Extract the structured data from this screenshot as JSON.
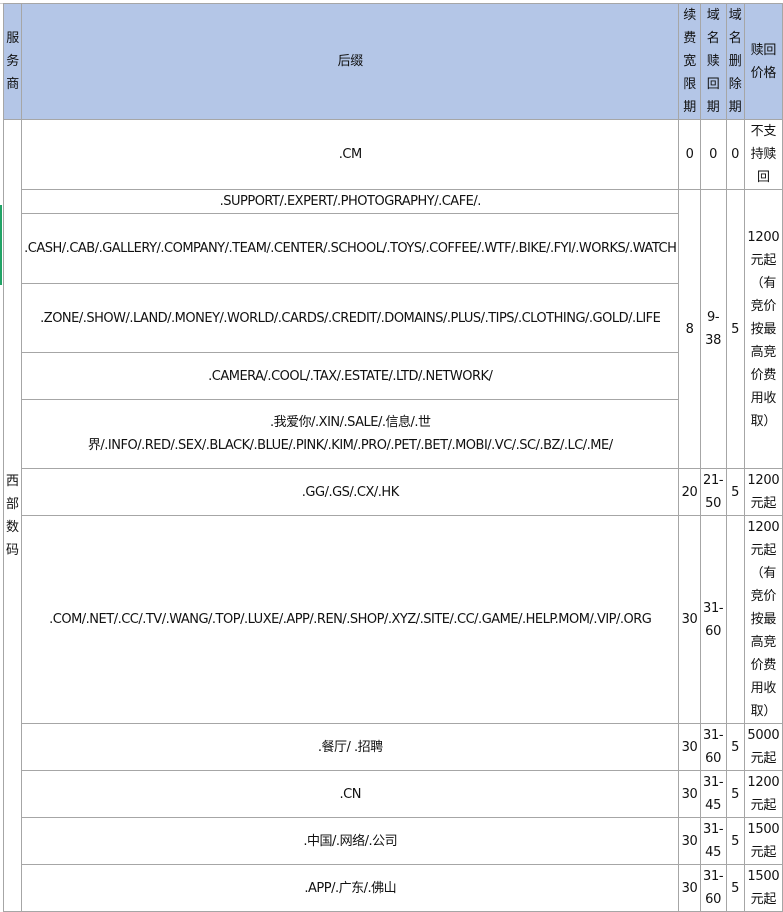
{
  "headers": {
    "provider": "服务商",
    "suffix": "后缀",
    "renew_grace": "续费宽限期",
    "redeem": "域名赎回期",
    "delete": "域名删除期",
    "price": "赎回价格"
  },
  "provider": "西部数码",
  "rows": [
    {
      "suffix": ".CM",
      "renew": "0",
      "redeem": "0",
      "delete": "0",
      "price": "不支持赎回"
    },
    {
      "suffixes": [
        ".SUPPORT/.EXPERT/.PHOTOGRAPHY/.CAFE/.",
        ".CASH/.CAB/.GALLERY/.COMPANY/.TEAM/.CENTER/.SCHOOL/.TOYS/.COFFEE/.WTF/.BIKE/.FYI/.WORKS/.WATCH",
        ".ZONE/.SHOW/.LAND/.MONEY/.WORLD/.CARDS/.CREDIT/.DOMAINS/.PLUS/.TIPS/.CLOTHING/.GOLD/.LIFE",
        ".CAMERA/.COOL/.TAX/.ESTATE/.LTD/.NETWORK/",
        ".我爱你/.XIN/.SALE/.信息/.世界/.INFO/.RED/.SEX/.BLACK/.BLUE/.PINK/.KIM/.PRO/.PET/.BET/.MOBI/.VC/.SC/.BZ/.LC/.ME/"
      ],
      "renew": "8",
      "redeem": "9-38",
      "delete": "5",
      "price": "1200元起（有竞价按最高竞价费用收取）"
    },
    {
      "suffix": ".GG/.GS/.CX/.HK",
      "renew": "20",
      "redeem": "21-50",
      "delete": "5",
      "price": "1200元起"
    },
    {
      "suffix": ".COM/.NET/.CC/.TV/.WANG/.TOP/.LUXE/.APP/.REN/.SHOP/.XYZ/.SITE/.CC/.GAME/.HELP.MOM/.VIP/.ORG",
      "renew": "30",
      "redeem": "31-60",
      "delete": "",
      "price": "1200元起（有竞价按最高竞价费用收取）"
    },
    {
      "suffix": ".餐厅/ .招聘",
      "renew": "30",
      "redeem": "31-60",
      "delete": "5",
      "price": "5000元起"
    },
    {
      "suffix": ".CN",
      "renew": "30",
      "redeem": "31-45",
      "delete": "5",
      "price": "1200元起"
    },
    {
      "suffix": ".中国/.网络/.公司",
      "renew": "30",
      "redeem": "31-45",
      "delete": "5",
      "price": "1500元起"
    },
    {
      "suffix": ".APP/.广东/.佛山",
      "renew": "30",
      "redeem": "31-60",
      "delete": "5",
      "price": "1500元起"
    }
  ]
}
